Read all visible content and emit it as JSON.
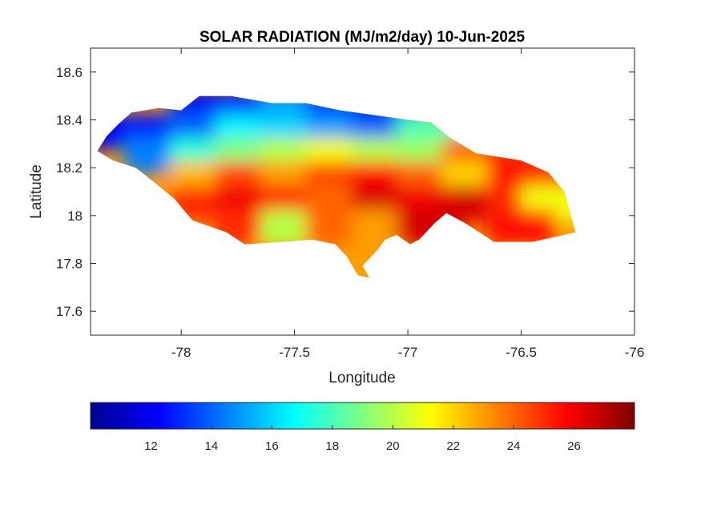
{
  "chart_data": {
    "type": "heatmap",
    "title": "SOLAR RADIATION (MJ/m2/day) 10-Jun-2025",
    "xlabel": "Longitude",
    "ylabel": "Latitude",
    "xlim": [
      -78.4,
      -76
    ],
    "ylim": [
      17.5,
      18.7
    ],
    "xticks": [
      -78,
      -77.5,
      -77,
      -76.5,
      -76
    ],
    "xtick_labels": [
      "-78",
      "-77.5",
      "-77",
      "-76.5",
      "-76"
    ],
    "yticks": [
      17.6,
      17.8,
      18,
      18.2,
      18.4,
      18.6
    ],
    "ytick_labels": [
      "17.6",
      "17.8",
      "18",
      "18.2",
      "18.4",
      "18.6"
    ],
    "grid": false,
    "colormap": "jet",
    "clim": [
      10,
      28
    ],
    "colorbar": {
      "location": "below",
      "ticks": [
        12,
        14,
        16,
        18,
        20,
        22,
        24,
        26
      ],
      "tick_labels": [
        "12",
        "14",
        "16",
        "18",
        "20",
        "22",
        "24",
        "26"
      ]
    },
    "region": "Jamaica",
    "grid_lon": [
      -78.3,
      -78.1,
      -77.9,
      -77.7,
      -77.5,
      -77.3,
      -77.1,
      -76.9,
      -76.7,
      -76.5,
      -76.35
    ],
    "grid_lat": [
      18.45,
      18.35,
      18.25,
      18.15,
      18.05,
      17.95
    ],
    "values": [
      [
        null,
        null,
        12.0,
        12.5,
        15.0,
        13.0,
        12.0,
        null,
        null,
        null,
        null
      ],
      [
        12.0,
        12.5,
        14.0,
        16.5,
        16.0,
        15.0,
        14.0,
        18.0,
        null,
        null,
        null
      ],
      [
        null,
        14.5,
        17.5,
        19.0,
        20.0,
        21.0,
        20.0,
        19.5,
        24.0,
        25.0,
        null
      ],
      [
        null,
        null,
        22.5,
        24.5,
        23.0,
        24.5,
        25.5,
        24.0,
        22.0,
        25.5,
        25.0
      ],
      [
        null,
        null,
        25.0,
        26.0,
        25.5,
        24.0,
        26.5,
        26.0,
        26.5,
        25.0,
        21.0
      ],
      [
        null,
        null,
        null,
        25.0,
        20.0,
        24.0,
        23.0,
        26.5,
        null,
        25.5,
        null
      ]
    ],
    "boundary": [
      [
        -78.37,
        18.27
      ],
      [
        -78.33,
        18.33
      ],
      [
        -78.28,
        18.38
      ],
      [
        -78.22,
        18.43
      ],
      [
        -78.1,
        18.45
      ],
      [
        -78.0,
        18.44
      ],
      [
        -77.92,
        18.5
      ],
      [
        -77.78,
        18.5
      ],
      [
        -77.6,
        18.47
      ],
      [
        -77.45,
        18.47
      ],
      [
        -77.3,
        18.44
      ],
      [
        -77.15,
        18.42
      ],
      [
        -77.0,
        18.4
      ],
      [
        -76.9,
        18.39
      ],
      [
        -76.82,
        18.33
      ],
      [
        -76.7,
        18.26
      ],
      [
        -76.5,
        18.23
      ],
      [
        -76.38,
        18.18
      ],
      [
        -76.31,
        18.1
      ],
      [
        -76.26,
        17.93
      ],
      [
        -76.45,
        17.89
      ],
      [
        -76.62,
        17.89
      ],
      [
        -76.75,
        17.97
      ],
      [
        -76.83,
        18.01
      ],
      [
        -76.88,
        17.97
      ],
      [
        -76.95,
        17.9
      ],
      [
        -76.99,
        17.88
      ],
      [
        -77.05,
        17.92
      ],
      [
        -77.1,
        17.9
      ],
      [
        -77.14,
        17.85
      ],
      [
        -77.2,
        17.79
      ],
      [
        -77.17,
        17.74
      ],
      [
        -77.22,
        17.75
      ],
      [
        -77.27,
        17.83
      ],
      [
        -77.32,
        17.88
      ],
      [
        -77.42,
        17.9
      ],
      [
        -77.55,
        17.89
      ],
      [
        -77.72,
        17.88
      ],
      [
        -77.8,
        17.93
      ],
      [
        -77.95,
        17.98
      ],
      [
        -78.03,
        18.07
      ],
      [
        -78.12,
        18.14
      ],
      [
        -78.2,
        18.2
      ],
      [
        -78.3,
        18.23
      ]
    ]
  }
}
